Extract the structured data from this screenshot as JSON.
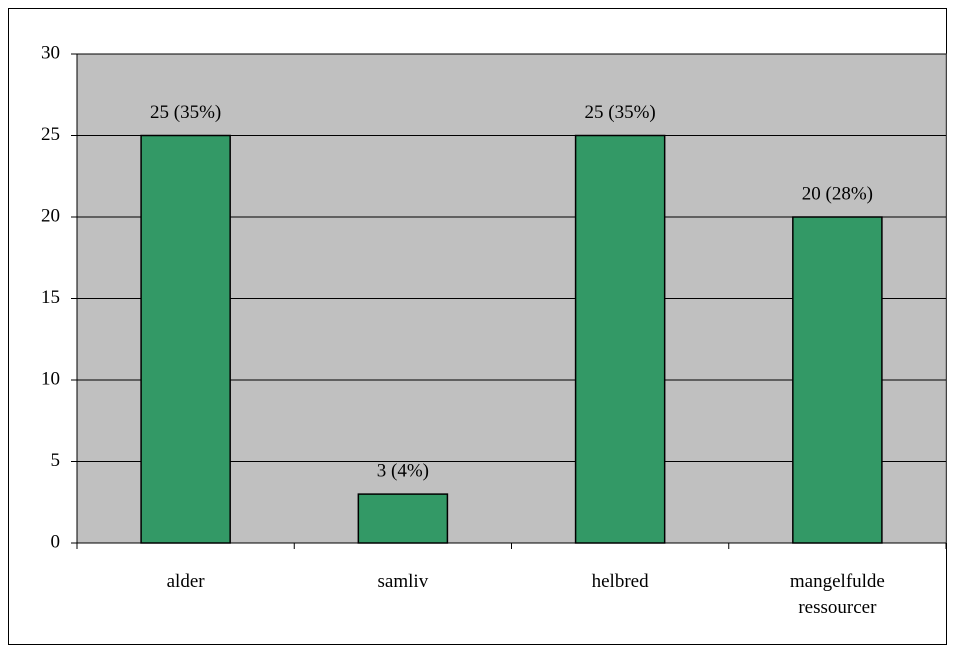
{
  "chart_data": {
    "type": "bar",
    "categories": [
      "alder",
      "samliv",
      "helbred",
      "mangelfulde ressourcer"
    ],
    "values": [
      25,
      3,
      25,
      20
    ],
    "value_labels": [
      "25 (35%)",
      "3 (4%)",
      "25 (35%)",
      "20 (28%)"
    ],
    "color": "#339966",
    "ylim": [
      0,
      30
    ],
    "yticks": [
      0,
      5,
      10,
      15,
      20,
      25,
      30
    ],
    "grid": true
  }
}
